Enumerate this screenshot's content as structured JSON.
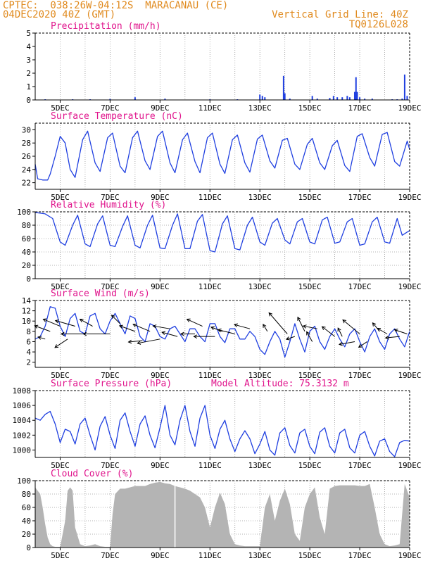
{
  "header": {
    "line1_left": "CPTEC:  038:26W-04:12S  MARACANAU (CE)",
    "line2_left": "04DEC2020 40Z (GMT)",
    "line1_right": "Vertical Grid Line: 40Z",
    "line2_right": "TQ0126L028"
  },
  "colors": {
    "header_text": "#e08a1e",
    "title_text": "#e0148c",
    "series": "#1f3fe0",
    "cloud_fill": "#b4b4b4",
    "wind_arrow": "#000000",
    "grid": "#9a9a9a"
  },
  "x_ticks": [
    "5DEC",
    "7DEC",
    "9DEC",
    "11DEC",
    "13DEC",
    "15DEC",
    "17DEC",
    "19DEC"
  ],
  "chart_data": [
    {
      "id": "precip",
      "type": "bar",
      "title": "Precipitation (mm/h)",
      "ylim": [
        0,
        5
      ],
      "yticks": [
        "0",
        "1",
        "2",
        "3",
        "4",
        "5"
      ],
      "grid": "vertical dotted",
      "x": [
        4.4,
        5.5,
        6.2,
        7.0,
        8.0,
        9.2,
        11.0,
        12.1,
        13.0,
        13.1,
        13.2,
        13.95,
        14.0,
        14.2,
        15.1,
        15.3,
        15.8,
        15.95,
        16.1,
        16.3,
        16.5,
        16.6,
        16.8,
        16.85,
        16.9,
        17.0,
        17.2,
        17.5,
        18.3,
        18.5,
        18.7,
        18.8,
        18.9
      ],
      "values": [
        0.05,
        0.05,
        0.05,
        0.08,
        0.2,
        0.1,
        0.05,
        0.05,
        0.4,
        0.3,
        0.2,
        1.8,
        0.5,
        0.1,
        0.3,
        0.1,
        0.15,
        0.3,
        0.2,
        0.2,
        0.3,
        0.2,
        0.6,
        1.7,
        0.6,
        0.2,
        0.1,
        0.1,
        0.05,
        0.05,
        0.1,
        1.9,
        0.3
      ]
    },
    {
      "id": "temp",
      "type": "line",
      "title": "Surface Temperature (nC)",
      "ylim": [
        21,
        31
      ],
      "yticks": [
        "22",
        "24",
        "26",
        "28",
        "30"
      ],
      "grid": "vertical dotted",
      "x": [
        4.0,
        4.1,
        4.3,
        4.5,
        4.6,
        4.8,
        5.0,
        5.2,
        5.4,
        5.6,
        5.9,
        6.1,
        6.4,
        6.6,
        6.9,
        7.1,
        7.4,
        7.6,
        7.9,
        8.1,
        8.4,
        8.6,
        8.9,
        9.1,
        9.4,
        9.6,
        9.9,
        10.1,
        10.4,
        10.6,
        10.9,
        11.1,
        11.4,
        11.6,
        11.9,
        12.1,
        12.4,
        12.6,
        12.9,
        13.1,
        13.4,
        13.6,
        13.9,
        14.1,
        14.4,
        14.6,
        14.9,
        15.1,
        15.4,
        15.6,
        15.9,
        16.1,
        16.4,
        16.6,
        16.9,
        17.1,
        17.4,
        17.6,
        17.9,
        18.1,
        18.4,
        18.6,
        18.9,
        19.0
      ],
      "values": [
        24.8,
        22.6,
        22.4,
        22.4,
        23.3,
        26.0,
        29.0,
        28.0,
        24.0,
        22.8,
        28.5,
        29.8,
        25.0,
        23.7,
        28.8,
        29.5,
        24.5,
        23.5,
        28.8,
        29.8,
        25.3,
        24.0,
        29.0,
        29.8,
        25.0,
        23.5,
        28.5,
        29.5,
        25.2,
        23.5,
        28.8,
        29.5,
        24.8,
        23.4,
        28.5,
        29.2,
        25.0,
        23.6,
        28.6,
        29.2,
        25.3,
        24.2,
        28.4,
        28.7,
        24.8,
        24.0,
        27.8,
        28.7,
        25.0,
        24.0,
        27.6,
        28.4,
        24.6,
        23.7,
        29.0,
        29.4,
        25.8,
        24.5,
        29.3,
        29.6,
        25.2,
        24.5,
        28.3,
        27.0
      ]
    },
    {
      "id": "rh",
      "type": "line",
      "title": "Relative Humidity (%)",
      "ylim": [
        0,
        100
      ],
      "yticks": [
        "0",
        "20",
        "40",
        "60",
        "80",
        "100"
      ],
      "grid": "horizontal+vertical dotted",
      "x": [
        4.0,
        4.2,
        4.4,
        4.7,
        5.0,
        5.2,
        5.5,
        5.7,
        6.0,
        6.2,
        6.5,
        6.7,
        7.0,
        7.2,
        7.5,
        7.7,
        8.0,
        8.2,
        8.5,
        8.7,
        9.0,
        9.2,
        9.5,
        9.7,
        10.0,
        10.2,
        10.5,
        10.7,
        11.0,
        11.2,
        11.5,
        11.7,
        12.0,
        12.2,
        12.5,
        12.7,
        13.0,
        13.2,
        13.5,
        13.7,
        14.0,
        14.2,
        14.5,
        14.7,
        15.0,
        15.2,
        15.5,
        15.7,
        16.0,
        16.2,
        16.5,
        16.7,
        17.0,
        17.2,
        17.5,
        17.7,
        18.0,
        18.2,
        18.5,
        18.7,
        19.0
      ],
      "values": [
        99,
        98,
        97,
        90,
        55,
        50,
        80,
        95,
        52,
        48,
        82,
        94,
        50,
        48,
        78,
        94,
        50,
        46,
        80,
        95,
        46,
        45,
        80,
        97,
        45,
        45,
        86,
        96,
        42,
        40,
        82,
        94,
        45,
        43,
        80,
        92,
        55,
        50,
        83,
        90,
        58,
        52,
        85,
        90,
        55,
        52,
        88,
        92,
        53,
        55,
        85,
        90,
        50,
        52,
        85,
        92,
        55,
        53,
        90,
        65,
        72
      ]
    },
    {
      "id": "wind",
      "type": "line",
      "title": "Surface Wind (m/s)",
      "ylim": [
        1,
        14
      ],
      "yticks": [
        "2",
        "4",
        "6",
        "8",
        "10",
        "12",
        "14"
      ],
      "grid": "vertical dotted",
      "x": [
        4.0,
        4.2,
        4.4,
        4.6,
        4.8,
        5.0,
        5.2,
        5.4,
        5.6,
        5.8,
        6.0,
        6.2,
        6.4,
        6.6,
        6.8,
        7.0,
        7.2,
        7.4,
        7.6,
        7.8,
        8.0,
        8.2,
        8.4,
        8.6,
        8.8,
        9.0,
        9.2,
        9.4,
        9.6,
        9.8,
        10.0,
        10.2,
        10.4,
        10.6,
        10.8,
        11.0,
        11.2,
        11.4,
        11.6,
        11.8,
        12.0,
        12.2,
        12.4,
        12.6,
        12.8,
        13.0,
        13.2,
        13.4,
        13.6,
        13.8,
        14.0,
        14.2,
        14.4,
        14.6,
        14.8,
        15.0,
        15.2,
        15.4,
        15.6,
        15.8,
        16.0,
        16.2,
        16.4,
        16.6,
        16.8,
        17.0,
        17.2,
        17.4,
        17.6,
        17.8,
        18.0,
        18.2,
        18.4,
        18.6,
        18.8,
        19.0
      ],
      "values": [
        6.5,
        7.0,
        9.0,
        12.8,
        12.5,
        9.0,
        7.0,
        10.5,
        11.5,
        8.0,
        7.5,
        11.0,
        11.5,
        8.5,
        7.5,
        10.0,
        11.5,
        9.5,
        7.5,
        11.0,
        10.5,
        7.0,
        6.0,
        9.5,
        9.0,
        7.0,
        6.5,
        8.5,
        9.0,
        7.5,
        6.0,
        8.5,
        8.5,
        7.0,
        6.0,
        9.5,
        9.5,
        7.0,
        5.8,
        8.5,
        8.5,
        6.5,
        6.5,
        8.0,
        7.0,
        4.5,
        3.5,
        6.0,
        8.0,
        6.5,
        3.0,
        6.0,
        9.5,
        6.5,
        4.0,
        8.0,
        9.0,
        6.0,
        4.5,
        7.0,
        8.5,
        6.5,
        5.0,
        7.5,
        8.5,
        6.0,
        4.0,
        7.0,
        8.5,
        6.0,
        4.5,
        7.5,
        8.5,
        6.5,
        5.0,
        8.0
      ],
      "vectors": [
        {
          "x": 4.4,
          "speed": 6.5,
          "dx": -10,
          "dy": -3
        },
        {
          "x": 4.6,
          "speed": 8.0,
          "dx": -22,
          "dy": -8
        },
        {
          "x": 5.0,
          "speed": 9.0,
          "dx": -24,
          "dy": -10
        },
        {
          "x": 5.3,
          "speed": 6.5,
          "dx": -18,
          "dy": 12
        },
        {
          "x": 5.6,
          "speed": 9.0,
          "dx": -28,
          "dy": -8
        },
        {
          "x": 6.0,
          "speed": 7.5,
          "dx": -34,
          "dy": 0
        },
        {
          "x": 6.3,
          "speed": 9.0,
          "dx": -18,
          "dy": -10
        },
        {
          "x": 7.0,
          "speed": 7.5,
          "dx": -38,
          "dy": 0
        },
        {
          "x": 7.4,
          "speed": 9.5,
          "dx": -12,
          "dy": -12
        },
        {
          "x": 8.0,
          "speed": 8.0,
          "dx": -22,
          "dy": -8
        },
        {
          "x": 8.3,
          "speed": 6.2,
          "dx": -20,
          "dy": 2
        },
        {
          "x": 8.6,
          "speed": 8.0,
          "dx": -24,
          "dy": -10
        },
        {
          "x": 9.0,
          "speed": 6.5,
          "dx": -32,
          "dy": 6
        },
        {
          "x": 9.4,
          "speed": 8.5,
          "dx": -24,
          "dy": -4
        },
        {
          "x": 9.7,
          "speed": 7.0,
          "dx": -22,
          "dy": -6
        },
        {
          "x": 10.4,
          "speed": 7.5,
          "dx": -20,
          "dy": 0
        },
        {
          "x": 10.7,
          "speed": 9.0,
          "dx": -22,
          "dy": -10
        },
        {
          "x": 11.2,
          "speed": 7.0,
          "dx": -30,
          "dy": 0
        },
        {
          "x": 11.5,
          "speed": 8.0,
          "dx": -16,
          "dy": -6
        },
        {
          "x": 12.0,
          "speed": 7.5,
          "dx": -24,
          "dy": -6
        },
        {
          "x": 12.6,
          "speed": 8.5,
          "dx": -22,
          "dy": -6
        },
        {
          "x": 13.3,
          "speed": 8.0,
          "dx": -6,
          "dy": -10
        },
        {
          "x": 14.1,
          "speed": 7.5,
          "dx": -26,
          "dy": -30
        },
        {
          "x": 14.4,
          "speed": 7.0,
          "dx": -12,
          "dy": 4
        },
        {
          "x": 14.8,
          "speed": 8.0,
          "dx": -10,
          "dy": -20
        },
        {
          "x": 15.1,
          "speed": 6.0,
          "dx": -8,
          "dy": -14
        },
        {
          "x": 15.3,
          "speed": 8.5,
          "dx": -20,
          "dy": -4
        },
        {
          "x": 16.0,
          "speed": 7.0,
          "dx": -18,
          "dy": -14
        },
        {
          "x": 16.3,
          "speed": 7.0,
          "dx": -6,
          "dy": -12
        },
        {
          "x": 16.8,
          "speed": 6.0,
          "dx": -22,
          "dy": 4
        },
        {
          "x": 17.0,
          "speed": 7.5,
          "dx": -24,
          "dy": -20
        },
        {
          "x": 17.3,
          "speed": 6.0,
          "dx": -12,
          "dy": 8
        },
        {
          "x": 17.8,
          "speed": 8.0,
          "dx": -10,
          "dy": -12
        },
        {
          "x": 18.1,
          "speed": 7.5,
          "dx": -14,
          "dy": -8
        },
        {
          "x": 18.6,
          "speed": 7.0,
          "dx": -20,
          "dy": 2
        },
        {
          "x": 18.9,
          "speed": 7.5,
          "dx": -18,
          "dy": -6
        }
      ]
    },
    {
      "id": "pressure",
      "type": "line",
      "title": "Surface Pressure (hPa)",
      "annotation": "Model Altitude: 75.3132 m",
      "ylim": [
        999,
        1008
      ],
      "yticks": [
        "1000",
        "1002",
        "1004",
        "1006",
        "1008"
      ],
      "grid": "vertical dotted",
      "x": [
        4.0,
        4.2,
        4.4,
        4.6,
        4.8,
        5.0,
        5.2,
        5.4,
        5.6,
        5.8,
        6.0,
        6.2,
        6.4,
        6.6,
        6.8,
        7.0,
        7.2,
        7.4,
        7.6,
        7.8,
        8.0,
        8.2,
        8.4,
        8.6,
        8.8,
        9.0,
        9.2,
        9.4,
        9.6,
        9.8,
        10.0,
        10.2,
        10.4,
        10.6,
        10.8,
        11.0,
        11.2,
        11.4,
        11.6,
        11.8,
        12.0,
        12.2,
        12.4,
        12.6,
        12.8,
        13.0,
        13.2,
        13.4,
        13.6,
        13.8,
        14.0,
        14.2,
        14.4,
        14.6,
        14.8,
        15.0,
        15.2,
        15.4,
        15.6,
        15.8,
        16.0,
        16.2,
        16.4,
        16.6,
        16.8,
        17.0,
        17.2,
        17.4,
        17.6,
        17.8,
        18.0,
        18.2,
        18.4,
        18.6,
        18.8,
        19.0
      ],
      "values": [
        1004.3,
        1004.0,
        1004.8,
        1005.2,
        1003.5,
        1001.0,
        1002.8,
        1002.5,
        1000.8,
        1003.5,
        1004.3,
        1002.0,
        1000.0,
        1003.2,
        1004.5,
        1002.0,
        1000.2,
        1004.0,
        1005.0,
        1002.5,
        1000.5,
        1003.5,
        1004.6,
        1002.0,
        1000.3,
        1003.0,
        1006.0,
        1002.0,
        1000.7,
        1004.0,
        1006.0,
        1002.5,
        1000.5,
        1004.3,
        1006.0,
        1002.0,
        1000.2,
        1002.8,
        1004.0,
        1001.5,
        999.8,
        1001.5,
        1002.6,
        1001.5,
        999.5,
        1000.8,
        1002.5,
        1000.0,
        999.3,
        1002.3,
        1003.0,
        1000.6,
        999.6,
        1002.3,
        1002.8,
        1000.5,
        999.5,
        1002.4,
        1003.0,
        1000.5,
        999.6,
        1002.3,
        1002.8,
        1000.3,
        999.6,
        1002.0,
        1002.5,
        1000.5,
        999.2,
        1001.2,
        1001.5,
        999.8,
        999.1,
        1001.0,
        1001.3,
        1001.2
      ]
    },
    {
      "id": "cloud",
      "type": "area",
      "title": "Cloud Cover (%)",
      "ylim": [
        0,
        100
      ],
      "yticks": [
        "0",
        "20",
        "40",
        "60",
        "80",
        "100"
      ],
      "grid": "horizontal+vertical dotted",
      "x": [
        4.0,
        4.1,
        4.2,
        4.3,
        4.4,
        4.5,
        4.6,
        4.7,
        4.8,
        5.0,
        5.2,
        5.3,
        5.4,
        5.5,
        5.6,
        5.8,
        6.0,
        6.2,
        6.4,
        6.6,
        6.8,
        7.0,
        7.1,
        7.2,
        7.4,
        7.6,
        7.8,
        8.0,
        8.2,
        8.4,
        8.6,
        8.8,
        9.0,
        9.2,
        9.4,
        9.6,
        9.8,
        10.0,
        10.2,
        10.4,
        10.6,
        10.8,
        11.0,
        11.2,
        11.4,
        11.6,
        11.8,
        12.0,
        12.2,
        12.4,
        12.6,
        12.8,
        13.0,
        13.2,
        13.4,
        13.6,
        13.8,
        14.0,
        14.2,
        14.4,
        14.6,
        14.8,
        15.0,
        15.2,
        15.4,
        15.6,
        15.8,
        16.0,
        16.2,
        16.4,
        16.6,
        16.8,
        17.0,
        17.2,
        17.4,
        17.6,
        17.8,
        18.0,
        18.2,
        18.4,
        18.6,
        18.8,
        19.0
      ],
      "values": [
        90,
        85,
        80,
        60,
        35,
        15,
        5,
        2,
        1,
        1,
        40,
        85,
        90,
        85,
        30,
        5,
        2,
        3,
        5,
        2,
        1,
        1,
        50,
        80,
        88,
        88,
        90,
        92,
        92,
        92,
        95,
        97,
        98,
        96,
        95,
        92,
        90,
        88,
        85,
        80,
        75,
        60,
        30,
        60,
        82,
        65,
        20,
        5,
        3,
        2,
        2,
        2,
        2,
        60,
        80,
        40,
        70,
        88,
        65,
        20,
        10,
        60,
        80,
        90,
        45,
        20,
        88,
        92,
        93,
        93,
        93,
        93,
        92,
        92,
        95,
        60,
        20,
        5,
        2,
        3,
        5,
        95,
        75
      ]
    }
  ]
}
